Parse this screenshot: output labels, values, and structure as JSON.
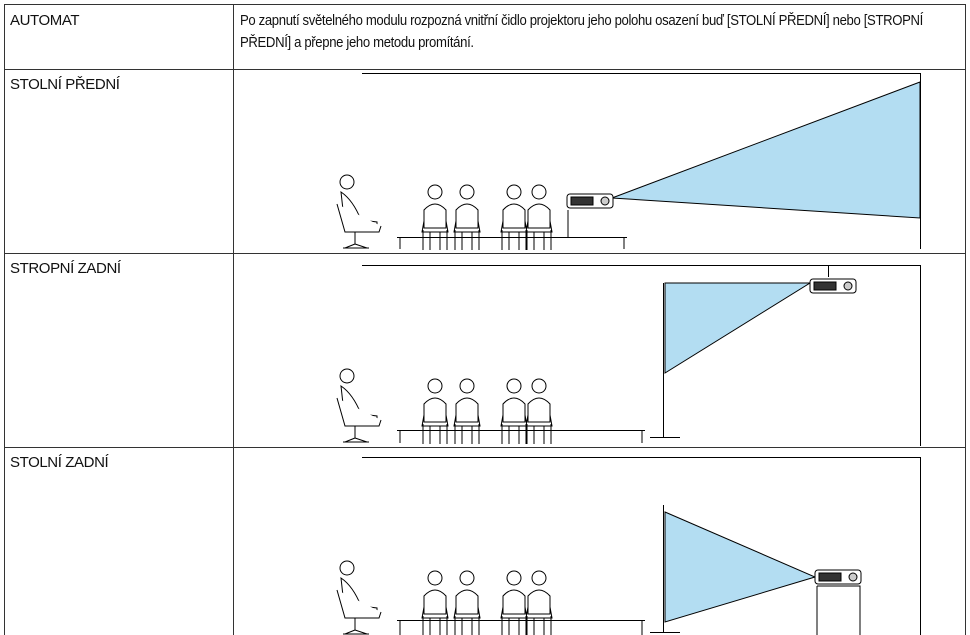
{
  "table": {
    "rows": [
      [
        "AUTOMAT",
        "Po zapnutí světelného modulu rozpozná vnitřní čidlo projektoru jeho polohu osazení buď [STOLNÍ PŘEDNÍ] nebo [STROPNÍ PŘEDNÍ] a přepne jeho metodu promítání."
      ],
      [
        "STOLNÍ PŘEDNÍ"
      ],
      [
        "STROPNÍ ZADNÍ"
      ],
      [
        "STOLNÍ ZADNÍ"
      ]
    ]
  }
}
